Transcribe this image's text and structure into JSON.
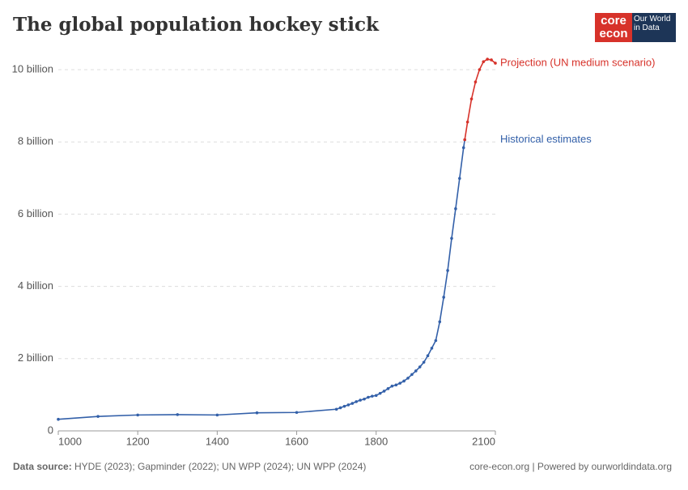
{
  "logo": {
    "line1": "core",
    "line2": "econ",
    "owid": "Our World in Data"
  },
  "chart_data": {
    "type": "line",
    "title": "The global population hockey stick",
    "series": [
      {
        "name": "Historical estimates",
        "color": "#3360a9",
        "x": [
          1000,
          1100,
          1200,
          1300,
          1400,
          1500,
          1600,
          1700,
          1710,
          1720,
          1730,
          1740,
          1750,
          1760,
          1770,
          1780,
          1790,
          1800,
          1810,
          1820,
          1830,
          1840,
          1850,
          1860,
          1870,
          1880,
          1890,
          1900,
          1910,
          1920,
          1930,
          1940,
          1950,
          1960,
          1970,
          1980,
          1990,
          2000,
          2010,
          2020,
          2023
        ],
        "values": [
          0.32,
          0.4,
          0.44,
          0.45,
          0.44,
          0.5,
          0.51,
          0.6,
          0.64,
          0.68,
          0.72,
          0.76,
          0.81,
          0.85,
          0.88,
          0.93,
          0.96,
          0.98,
          1.04,
          1.1,
          1.17,
          1.24,
          1.27,
          1.32,
          1.38,
          1.46,
          1.56,
          1.66,
          1.77,
          1.9,
          2.08,
          2.29,
          2.5,
          3.02,
          3.7,
          4.44,
          5.33,
          6.15,
          6.99,
          7.84,
          8.06
        ]
      },
      {
        "name": "Projection (UN medium scenario)",
        "color": "#d7322a",
        "x": [
          2023,
          2030,
          2040,
          2050,
          2060,
          2070,
          2080,
          2090,
          2100
        ],
        "values": [
          8.06,
          8.55,
          9.19,
          9.66,
          10.0,
          10.22,
          10.29,
          10.27,
          10.18
        ]
      }
    ],
    "xlim": [
      1000,
      2100
    ],
    "xticks": [
      1000,
      1200,
      1400,
      1600,
      1800,
      2100
    ],
    "ylim": [
      0,
      10.4
    ],
    "yticks": [
      0,
      {
        "value": 2,
        "label": "2 billion"
      },
      {
        "value": 4,
        "label": "4 billion"
      },
      {
        "value": 6,
        "label": "6 billion"
      },
      {
        "value": 8,
        "label": "8 billion"
      },
      {
        "value": 10,
        "label": "10 billion"
      }
    ],
    "grid": true,
    "source_label": "Data source:",
    "source": "HYDE (2023); Gapminder (2022); UN WPP (2024); UN WPP (2024)",
    "credit": "core-econ.org | Powered by ourworldindata.org"
  }
}
